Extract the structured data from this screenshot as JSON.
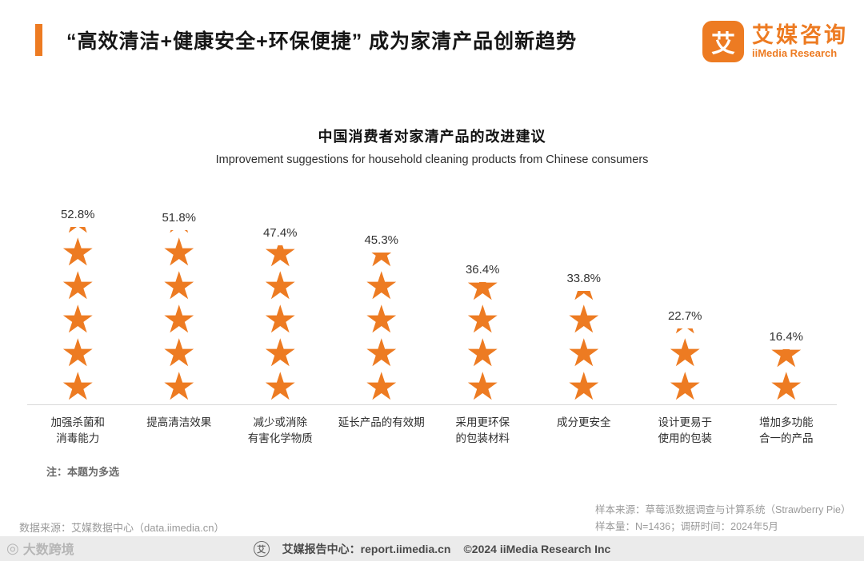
{
  "header": {
    "title": "“高效清洁+健康安全+环保便捷” 成为家清产品创新趋势",
    "accent_color": "#ED7B22"
  },
  "logo": {
    "glyph": "艾",
    "name": "艾媒咨询",
    "subtitle": "iiMedia Research"
  },
  "chart_data": {
    "type": "bar",
    "variant": "pictogram-star-columns",
    "title": "中国消费者对家清产品的改进建议",
    "subtitle": "Improvement suggestions for household cleaning products from Chinese consumers",
    "unit": "%",
    "star_unit_percent": 10,
    "star_color": "#ED7B22",
    "ylim": [
      0,
      60
    ],
    "categories": [
      "加强杀菌和消毒能力",
      "提高清洁效果",
      "减少或消除有害化学物质",
      "延长产品的有效期",
      "采用更环保的包装材料",
      "成分更安全",
      "设计更易于使用的包装",
      "增加多功能合一的产品"
    ],
    "category_lines": [
      [
        "加强杀菌和",
        "消毒能力"
      ],
      [
        "提高清洁效果"
      ],
      [
        "减少或消除",
        "有害化学物质"
      ],
      [
        "延长产品的有效期"
      ],
      [
        "采用更环保",
        "的包装材料"
      ],
      [
        "成分更安全"
      ],
      [
        "设计更易于",
        "使用的包装"
      ],
      [
        "增加多功能",
        "合一的产品"
      ]
    ],
    "values": [
      52.8,
      51.8,
      47.4,
      45.3,
      36.4,
      33.8,
      22.7,
      16.4
    ],
    "value_labels": [
      "52.8%",
      "51.8%",
      "47.4%",
      "45.3%",
      "36.4%",
      "33.8%",
      "22.7%",
      "16.4%"
    ]
  },
  "note": "注：本题为多选",
  "sources": {
    "data_source": "数据来源：艾媒数据中心（data.iimedia.cn）",
    "sample_source": "样本来源：草莓派数据调查与计算系统（Strawberry Pie）",
    "sample_info": "样本量：N=1436；调研时间：2024年5月"
  },
  "footer": {
    "report_center": "艾媒报告中心：report.iimedia.cn",
    "copyright": "©2024   iiMedia Research Inc"
  },
  "icons": {
    "star_glyph": "★",
    "report_center_glyph": "艾",
    "watermark_glyph": "◎"
  },
  "watermark": "大数跨境"
}
